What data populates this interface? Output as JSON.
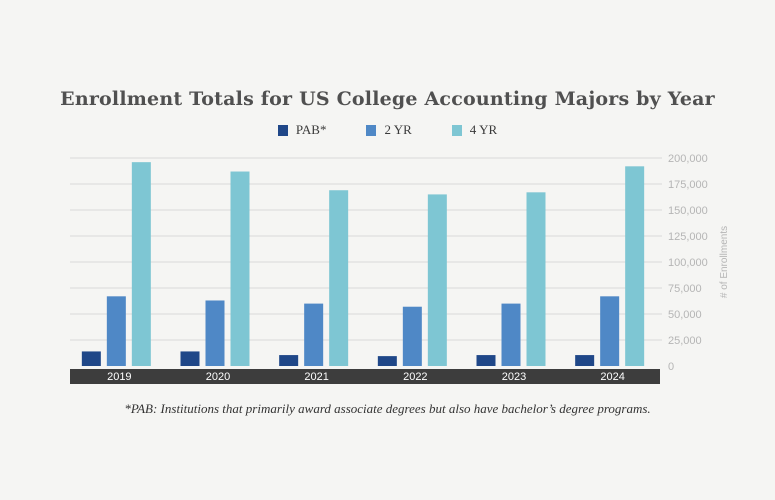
{
  "title": "Enrollment Totals for US College Accounting Majors by Year",
  "footnote": "*PAB: Institutions that primarily award associate degrees but also have bachelor’s degree programs.",
  "colors": {
    "background": "#f5f5f3",
    "gridline": "#d9d9d9",
    "category_band": "#3d3d3d",
    "category_text": "#ffffff",
    "tick_text": "#b5b5b5"
  },
  "chart_data": {
    "type": "bar",
    "title": "Enrollment Totals for US College Accounting Majors by Year",
    "xlabel": "",
    "ylabel": "# of Enrollments",
    "ylim": [
      0,
      200000
    ],
    "yticks": [
      0,
      25000,
      50000,
      75000,
      100000,
      125000,
      150000,
      175000,
      200000
    ],
    "ytick_labels": [
      "0",
      "25,000",
      "50,000",
      "75,000",
      "100,000",
      "125,000",
      "150,000",
      "175,000",
      "200,000"
    ],
    "grid": true,
    "legend_position": "top-center",
    "categories": [
      "2019",
      "2020",
      "2021",
      "2022",
      "2023",
      "2024"
    ],
    "series": [
      {
        "name": "PAB*",
        "color": "#1f4788",
        "values": [
          14000,
          14000,
          10500,
          9500,
          10500,
          10500
        ]
      },
      {
        "name": "2 YR",
        "color": "#4f88c6",
        "values": [
          67000,
          63000,
          60000,
          57000,
          60000,
          67000
        ]
      },
      {
        "name": "4 YR",
        "color": "#7ec6d3",
        "values": [
          196000,
          187000,
          169000,
          165000,
          167000,
          192000
        ]
      }
    ]
  }
}
